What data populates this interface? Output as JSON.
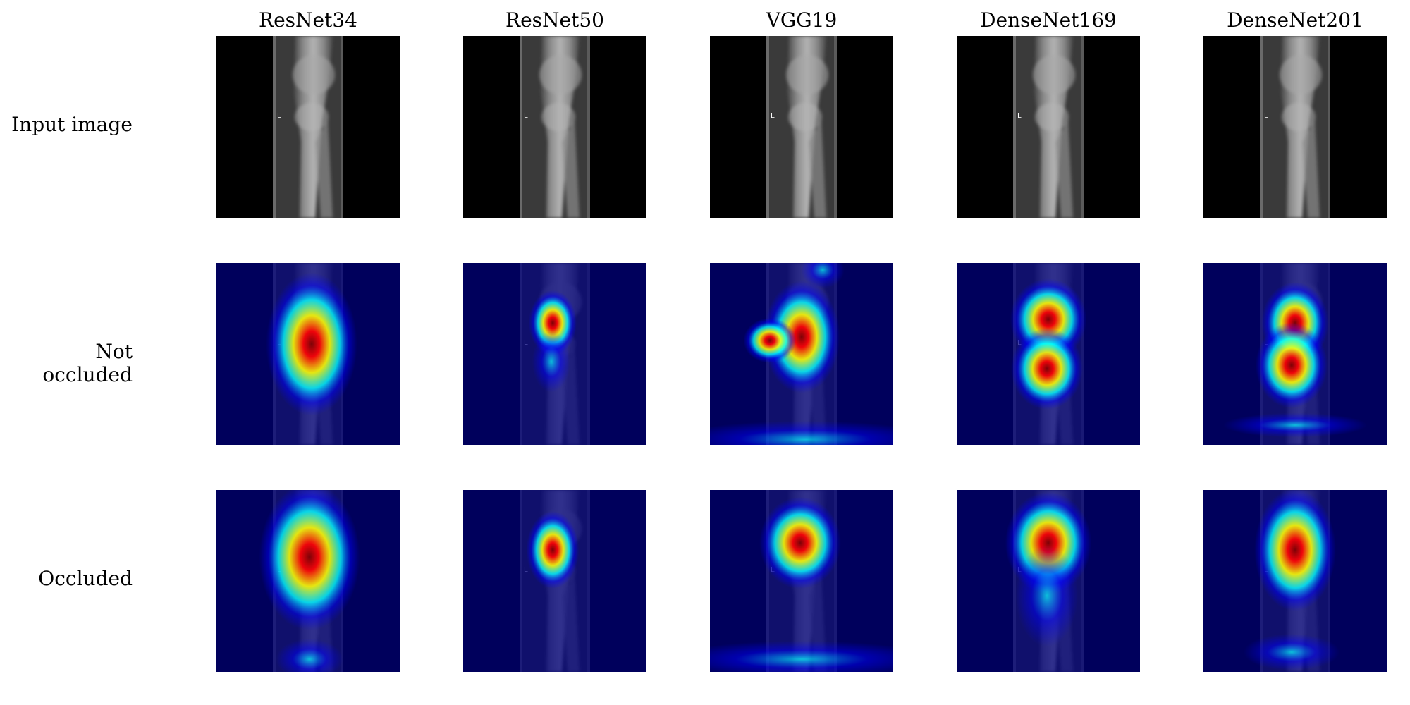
{
  "figure": {
    "columns": [
      {
        "title": "ResNet34"
      },
      {
        "title": "ResNet50"
      },
      {
        "title": "VGG19"
      },
      {
        "title": "DenseNet169"
      },
      {
        "title": "DenseNet201"
      }
    ],
    "rows": [
      {
        "label": "Input image",
        "kind": "input"
      },
      {
        "label": "Not occluded",
        "kind": "heatmap"
      },
      {
        "label": "Occluded",
        "kind": "heatmap"
      }
    ],
    "colormap": {
      "name": "jet",
      "colors": [
        "#000080",
        "#0000ff",
        "#00ffff",
        "#ffff00",
        "#ff0000",
        "#800000"
      ]
    },
    "xray": {
      "marker_text": "L",
      "background": "#000000",
      "film_color": "#3a3a3a",
      "bone_color": "#bdbdbd"
    }
  }
}
